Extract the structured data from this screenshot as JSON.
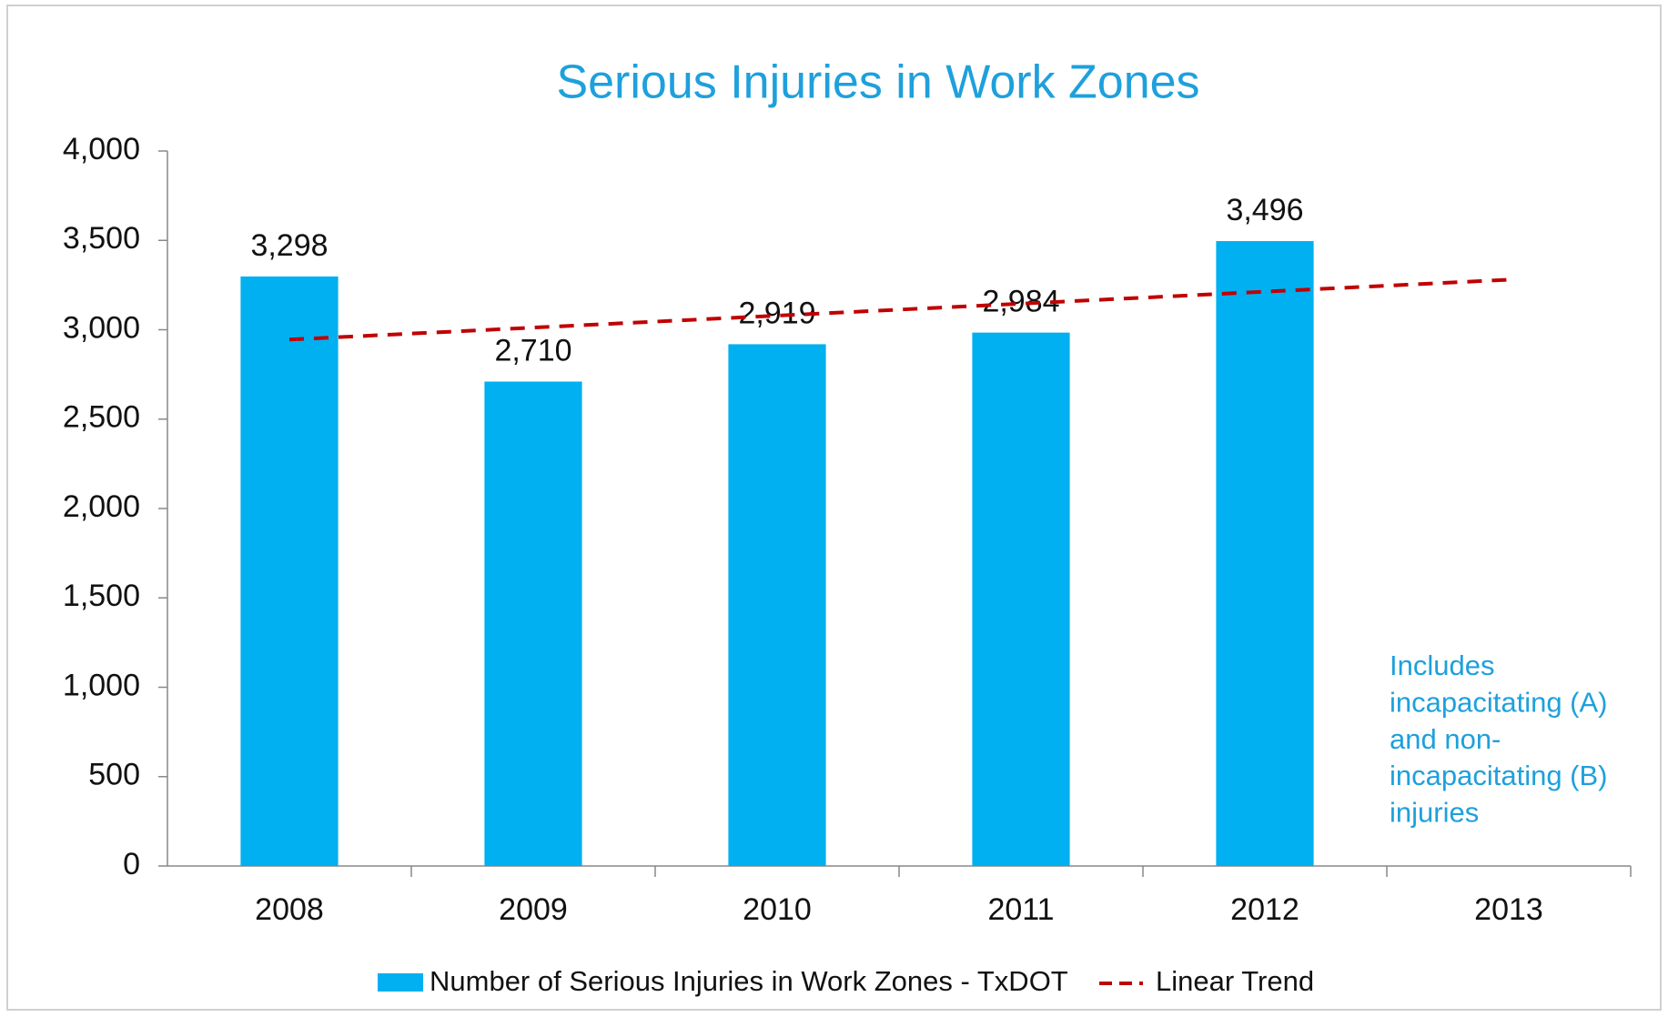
{
  "chart_data": {
    "type": "bar",
    "title": "Serious Injuries in Work Zones",
    "categories": [
      "2008",
      "2009",
      "2010",
      "2011",
      "2012",
      "2013"
    ],
    "series": [
      {
        "name": "Number of Serious Injuries in Work Zones - TxDOT",
        "type": "bar",
        "color": "#00b0f0",
        "values": [
          3298,
          2710,
          2919,
          2984,
          3496,
          null
        ],
        "value_labels": [
          "3,298",
          "2,710",
          "2,919",
          "2,984",
          "3,496",
          null
        ]
      },
      {
        "name": "Linear Trend",
        "type": "line",
        "color": "#c00000",
        "dashed": true,
        "values": [
          2945,
          3012,
          3079,
          3146,
          3213,
          3280
        ]
      }
    ],
    "ylim": [
      0,
      4000
    ],
    "yticks": [
      0,
      500,
      {
        "value": 1000,
        "label": "1,000"
      },
      {
        "value": 1500,
        "label": "1,500"
      },
      {
        "value": 2000,
        "label": "2,000"
      },
      {
        "value": 2500,
        "label": "2,500"
      },
      {
        "value": 3000,
        "label": "3,000"
      },
      {
        "value": 3500,
        "label": "3,500"
      },
      {
        "value": 4000,
        "label": "4,000"
      }
    ],
    "annotation": [
      "Includes",
      "incapacitating (A)",
      "and non-",
      "incapacitating (B)",
      "injuries"
    ],
    "annotation_color": "#1ea0dc",
    "title_color": "#1ea0dc",
    "grid": false,
    "legend": "bottom"
  }
}
